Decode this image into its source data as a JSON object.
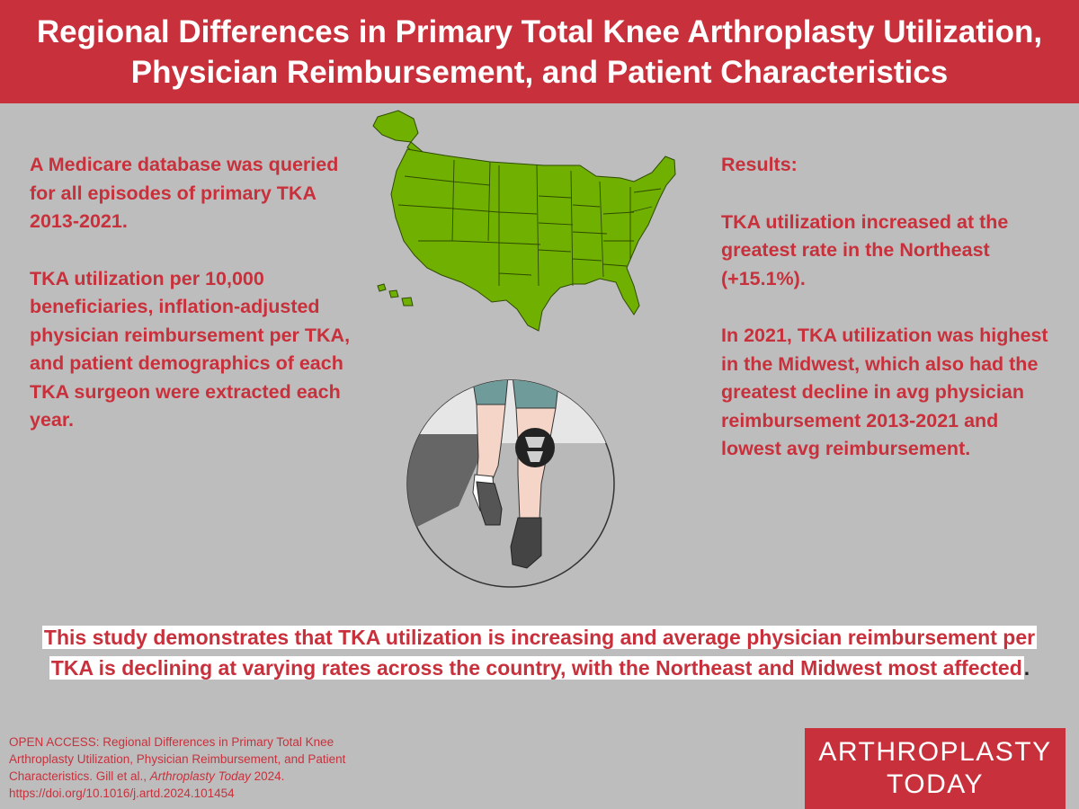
{
  "header": {
    "title_line1": "Regional Differences in Primary Total Knee Arthroplasty Utilization,",
    "title_line2": "Physician Reimbursement, and Patient Characteristics"
  },
  "left": {
    "para1": "A Medicare database was queried for all episodes of primary TKA 2013-2021.",
    "para2": "TKA utilization per 10,000 beneficiaries, inflation-adjusted physician reimbursement per TKA, and patient demographics of each TKA surgeon were extracted each year."
  },
  "right": {
    "heading": "Results:",
    "para1": "TKA utilization increased at the greatest rate in the Northeast (+15.1%).",
    "para2": "In 2021, TKA utilization was highest in the Midwest, which also had the greatest decline in avg physician reimbursement 2013-2021 and lowest avg reimbursement."
  },
  "conclusion": {
    "text": "This study demonstrates that TKA utilization is increasing and average physician reimbursement per TKA is declining at varying rates across the country, with the Northeast and Midwest most affected",
    "end": "."
  },
  "citation": {
    "prefix": "OPEN ACCESS: Regional Differences in Primary Total Knee Arthroplasty Utilization, Physician Reimbursement, and Patient Characteristics. Gill et al., ",
    "journal": "Arthroplasty Today",
    "suffix": " 2024. https://doi.org/10.1016/j.artd.2024.101454"
  },
  "logo": {
    "line1": "ARTHROPLASTY",
    "line2": "TODAY"
  },
  "colors": {
    "accent_red": "#c8313c",
    "background_gray": "#bdbdbd",
    "map_green": "#6fb000",
    "text_white": "#ffffff"
  },
  "icons": {
    "map": "us-map-illustration",
    "knee": "knee-illustration"
  }
}
